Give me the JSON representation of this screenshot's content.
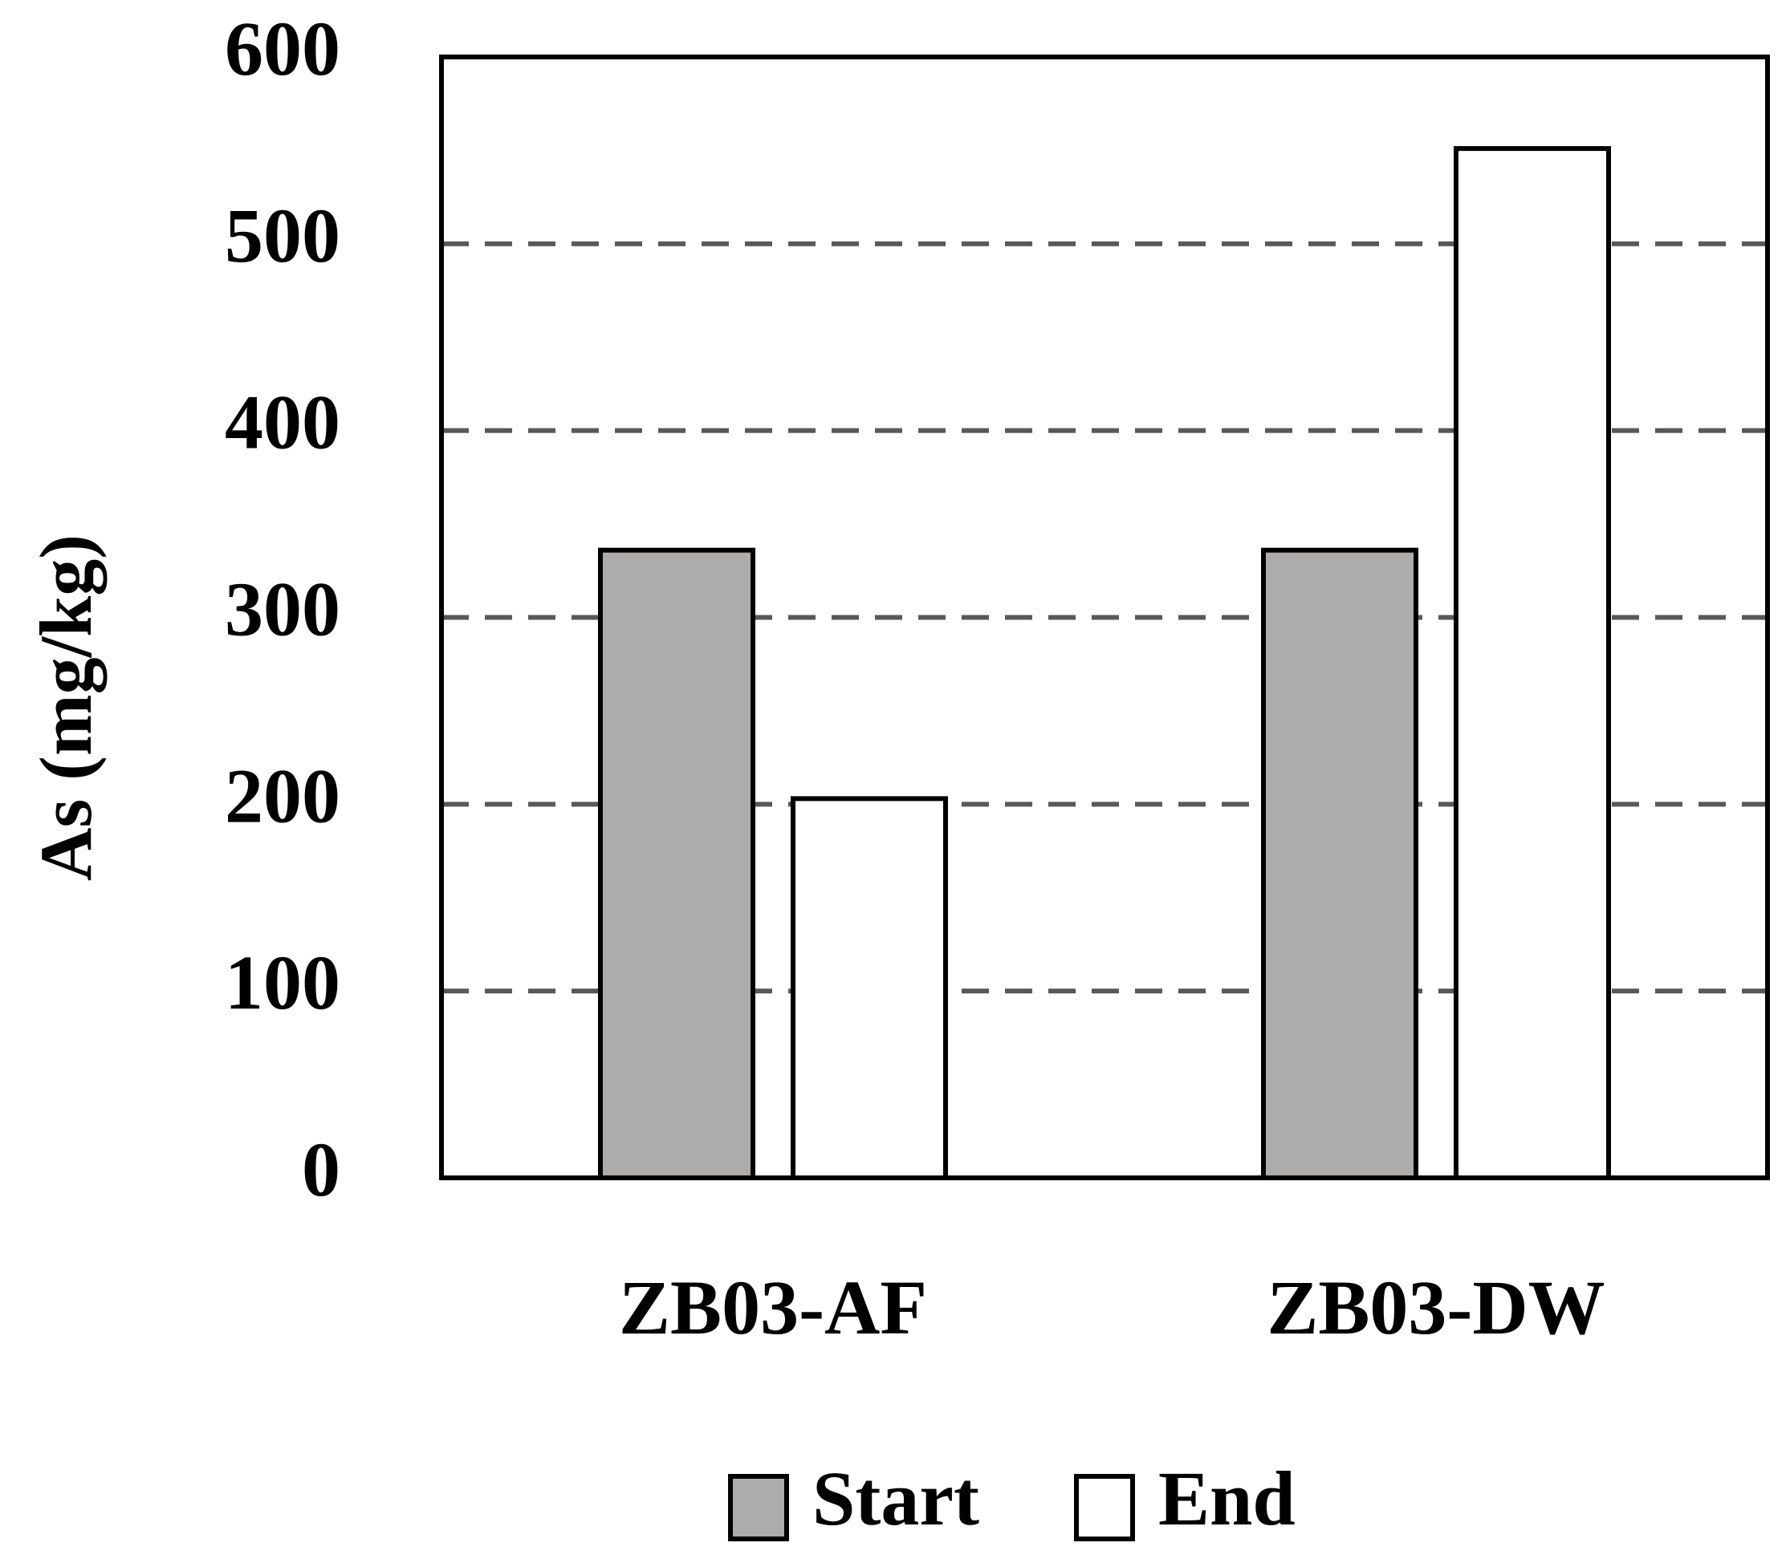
{
  "chart_data": {
    "type": "bar",
    "y_label": "As (mg/kg)",
    "categories": [
      "ZB03-AF",
      "ZB03-DW"
    ],
    "series": [
      {
        "name": "Start",
        "color": "#aeabab",
        "values": [
          336,
          336
        ]
      },
      {
        "name": "End",
        "color": "#ffffff",
        "values": [
          203,
          551
        ]
      }
    ],
    "ylim": [
      0,
      600
    ],
    "yticks": [
      0,
      100,
      200,
      300,
      400,
      500,
      600
    ],
    "grid": true,
    "legend": "bottom"
  }
}
